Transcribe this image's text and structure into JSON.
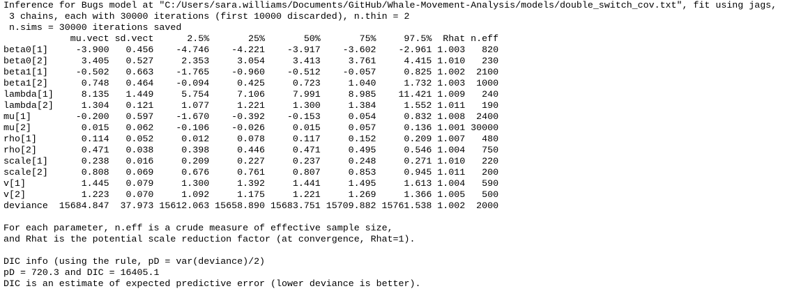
{
  "header": {
    "lines": [
      "Inference for Bugs model at \"C:/Users/sara.williams/Documents/GitHub/Whale-Movement-Analysis/models/double_switch_cov.txt\", fit using jags,",
      " 3 chains, each with 30000 iterations (first 10000 discarded), n.thin = 2",
      " n.sims = 30000 iterations saved"
    ]
  },
  "table": {
    "columns": [
      "mu.vect",
      "sd.vect",
      "2.5%",
      "25%",
      "50%",
      "75%",
      "97.5%",
      "Rhat",
      "n.eff"
    ],
    "rows": [
      [
        "beta0[1]",
        "-3.900",
        "0.456",
        "-4.746",
        "-4.221",
        "-3.917",
        "-3.602",
        "-2.961",
        "1.003",
        "820"
      ],
      [
        "beta0[2]",
        "3.405",
        "0.527",
        "2.353",
        "3.054",
        "3.413",
        "3.761",
        "4.415",
        "1.010",
        "230"
      ],
      [
        "beta1[1]",
        "-0.502",
        "0.663",
        "-1.765",
        "-0.960",
        "-0.512",
        "-0.057",
        "0.825",
        "1.002",
        "2100"
      ],
      [
        "beta1[2]",
        "0.748",
        "0.464",
        "-0.094",
        "0.425",
        "0.723",
        "1.040",
        "1.732",
        "1.003",
        "1000"
      ],
      [
        "lambda[1]",
        "8.135",
        "1.449",
        "5.754",
        "7.106",
        "7.991",
        "8.985",
        "11.421",
        "1.009",
        "240"
      ],
      [
        "lambda[2]",
        "1.304",
        "0.121",
        "1.077",
        "1.221",
        "1.300",
        "1.384",
        "1.552",
        "1.011",
        "190"
      ],
      [
        "mu[1]",
        "-0.200",
        "0.597",
        "-1.670",
        "-0.392",
        "-0.153",
        "0.054",
        "0.832",
        "1.008",
        "2400"
      ],
      [
        "mu[2]",
        "0.015",
        "0.062",
        "-0.106",
        "-0.026",
        "0.015",
        "0.057",
        "0.136",
        "1.001",
        "30000"
      ],
      [
        "rho[1]",
        "0.114",
        "0.052",
        "0.012",
        "0.078",
        "0.117",
        "0.152",
        "0.209",
        "1.007",
        "480"
      ],
      [
        "rho[2]",
        "0.471",
        "0.038",
        "0.398",
        "0.446",
        "0.471",
        "0.495",
        "0.546",
        "1.004",
        "750"
      ],
      [
        "scale[1]",
        "0.238",
        "0.016",
        "0.209",
        "0.227",
        "0.237",
        "0.248",
        "0.271",
        "1.010",
        "220"
      ],
      [
        "scale[2]",
        "0.808",
        "0.069",
        "0.676",
        "0.761",
        "0.807",
        "0.853",
        "0.945",
        "1.011",
        "200"
      ],
      [
        "v[1]",
        "1.445",
        "0.079",
        "1.300",
        "1.392",
        "1.441",
        "1.495",
        "1.613",
        "1.004",
        "590"
      ],
      [
        "v[2]",
        "1.223",
        "0.070",
        "1.092",
        "1.175",
        "1.221",
        "1.269",
        "1.366",
        "1.005",
        "500"
      ],
      [
        "deviance",
        "15684.847",
        "37.973",
        "15612.063",
        "15658.890",
        "15683.751",
        "15709.882",
        "15761.538",
        "1.002",
        "2000"
      ]
    ]
  },
  "notes": [
    "For each parameter, n.eff is a crude measure of effective sample size,",
    "and Rhat is the potential scale reduction factor (at convergence, Rhat=1)."
  ],
  "dic": [
    "DIC info (using the rule, pD = var(deviance)/2)",
    "pD = 720.3 and DIC = 16405.1",
    "DIC is an estimate of expected predictive error (lower deviance is better)."
  ]
}
